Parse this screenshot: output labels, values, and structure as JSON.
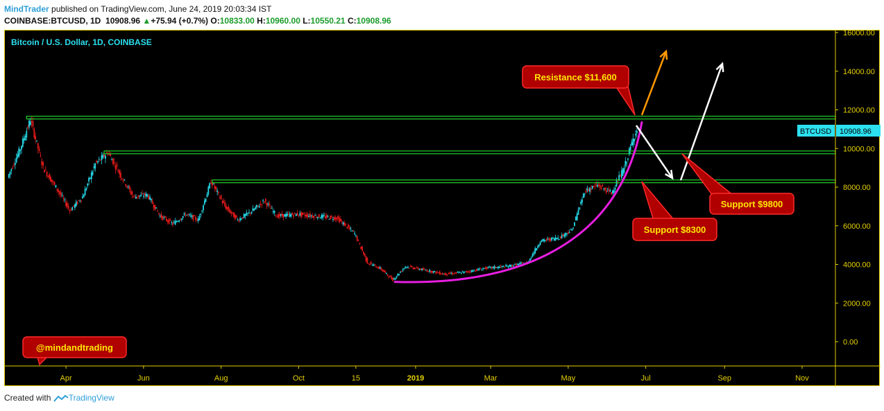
{
  "header": {
    "author": "MindTrader",
    "published": "published on TradingView.com, June 24, 2019 20:03:34 IST",
    "symbol": "COINBASE:BTCUSD, 1D",
    "last": "10908.96",
    "change": "+75.94 (+0.7%)",
    "o_label": "O:",
    "o": "10833.00",
    "h_label": "H:",
    "h": "10960.00",
    "l_label": "L:",
    "l": "10550.21",
    "c_label": "C:",
    "c": "10908.96",
    "up_arrow": "▲"
  },
  "chart_title": "Bitcoin / U.S. Dollar, 1D, COINBASE",
  "price_label": {
    "symbol": "BTCUSD",
    "value": "10908.96"
  },
  "annotations": {
    "resistance": "Resistance $11,600",
    "support_9800": "Support $9800",
    "support_8300": "Support $8300",
    "handle": "@mindandtrading"
  },
  "footer": {
    "prefix": "Created with",
    "brand": "TradingView"
  },
  "colors": {
    "background": "#000000",
    "up_candle": "#26d9e8",
    "down_candle": "#e41a1a",
    "level_line": "#22d32a",
    "curve": "#e81ee0",
    "arrow_orange": "#ff9800",
    "arrow_white": "#ffffff",
    "callout_fill": "#b00000",
    "callout_text": "#ffe600",
    "axis_text": "#e6d000",
    "title_text": "#2ce0f0"
  },
  "chart_data": {
    "type": "candlestick",
    "y_axis": {
      "min": 0,
      "max": 16000,
      "ticks": [
        "16000.00",
        "14000.00",
        "12000.00",
        "10000.00",
        "8000.00",
        "6000.00",
        "4000.00",
        "2000.00",
        "0.00"
      ],
      "position": "right"
    },
    "x_axis": {
      "ticks": [
        "Apr",
        "Jun",
        "Aug",
        "Oct",
        "15",
        "2019",
        "Mar",
        "May",
        "Jul",
        "Sep",
        "Nov"
      ]
    },
    "levels": [
      11600,
      9800,
      8300
    ],
    "price_path": [
      [
        "2018-02-15",
        8500
      ],
      [
        "2018-02-25",
        10000
      ],
      [
        "2018-03-05",
        11500
      ],
      [
        "2018-03-15",
        9000
      ],
      [
        "2018-03-25",
        8000
      ],
      [
        "2018-04-05",
        6800
      ],
      [
        "2018-04-15",
        7500
      ],
      [
        "2018-04-25",
        9200
      ],
      [
        "2018-05-05",
        9800
      ],
      [
        "2018-05-15",
        8600
      ],
      [
        "2018-05-25",
        7500
      ],
      [
        "2018-06-05",
        7600
      ],
      [
        "2018-06-15",
        6500
      ],
      [
        "2018-06-25",
        6100
      ],
      [
        "2018-07-05",
        6600
      ],
      [
        "2018-07-15",
        6300
      ],
      [
        "2018-07-25",
        8300
      ],
      [
        "2018-08-05",
        7000
      ],
      [
        "2018-08-15",
        6300
      ],
      [
        "2018-08-25",
        6700
      ],
      [
        "2018-09-05",
        7300
      ],
      [
        "2018-09-15",
        6500
      ],
      [
        "2018-10-01",
        6600
      ],
      [
        "2018-10-15",
        6500
      ],
      [
        "2018-11-01",
        6400
      ],
      [
        "2018-11-15",
        5600
      ],
      [
        "2018-11-25",
        4100
      ],
      [
        "2018-12-05",
        3800
      ],
      [
        "2018-12-15",
        3200
      ],
      [
        "2018-12-25",
        3900
      ],
      [
        "2019-01-10",
        3700
      ],
      [
        "2019-01-25",
        3500
      ],
      [
        "2019-02-10",
        3600
      ],
      [
        "2019-02-25",
        3800
      ],
      [
        "2019-03-15",
        3900
      ],
      [
        "2019-03-31",
        4100
      ],
      [
        "2019-04-10",
        5200
      ],
      [
        "2019-04-25",
        5400
      ],
      [
        "2019-05-05",
        5800
      ],
      [
        "2019-05-15",
        7800
      ],
      [
        "2019-05-25",
        8100
      ],
      [
        "2019-06-05",
        7700
      ],
      [
        "2019-06-15",
        9000
      ],
      [
        "2019-06-24",
        10900
      ]
    ]
  }
}
